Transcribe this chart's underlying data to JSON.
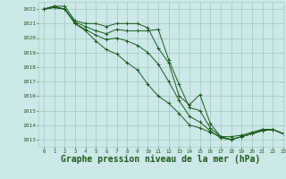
{
  "background_color": "#cce8e8",
  "grid_color": "#aacccc",
  "line_color": "#1a5c1a",
  "xlabel": "Graphe pression niveau de la mer (hPa)",
  "xlabel_fontsize": 7,
  "ylim": [
    1012.5,
    1022.5
  ],
  "xlim": [
    -0.5,
    23
  ],
  "yticks": [
    1013,
    1014,
    1015,
    1016,
    1017,
    1018,
    1019,
    1020,
    1021,
    1022
  ],
  "xticks": [
    0,
    1,
    2,
    3,
    4,
    5,
    6,
    7,
    8,
    9,
    10,
    11,
    12,
    13,
    14,
    15,
    16,
    17,
    18,
    19,
    20,
    21,
    22,
    23
  ],
  "series": [
    [
      1022.0,
      1022.2,
      1022.2,
      1021.2,
      1021.0,
      1021.0,
      1020.8,
      1021.0,
      1021.0,
      1021.0,
      1020.7,
      1019.3,
      1018.3,
      1016.0,
      1015.4,
      1016.1,
      1014.1,
      1013.2,
      1013.2,
      1013.3,
      1013.5,
      1013.7,
      1013.7,
      1013.4
    ],
    [
      1022.0,
      1022.2,
      1022.0,
      1021.1,
      1020.8,
      1020.5,
      1020.3,
      1020.6,
      1020.5,
      1020.5,
      1020.5,
      1020.6,
      1018.5,
      1016.8,
      1015.2,
      1015.0,
      1013.8,
      1013.2,
      1013.0,
      1013.2,
      1013.4,
      1013.6,
      1013.7,
      1013.4
    ],
    [
      1022.0,
      1022.1,
      1022.0,
      1021.0,
      1020.6,
      1020.2,
      1019.9,
      1020.0,
      1019.8,
      1019.5,
      1019.0,
      1018.2,
      1017.0,
      1015.7,
      1014.6,
      1014.2,
      1013.6,
      1013.1,
      1013.0,
      1013.2,
      1013.4,
      1013.6,
      1013.7,
      1013.4
    ],
    [
      1022.0,
      1022.1,
      1022.0,
      1021.0,
      1020.5,
      1019.8,
      1019.2,
      1018.9,
      1018.3,
      1017.8,
      1016.8,
      1016.0,
      1015.5,
      1014.8,
      1014.0,
      1013.8,
      1013.5,
      1013.2,
      1013.0,
      1013.2,
      1013.4,
      1013.7,
      1013.7,
      1013.4
    ]
  ]
}
